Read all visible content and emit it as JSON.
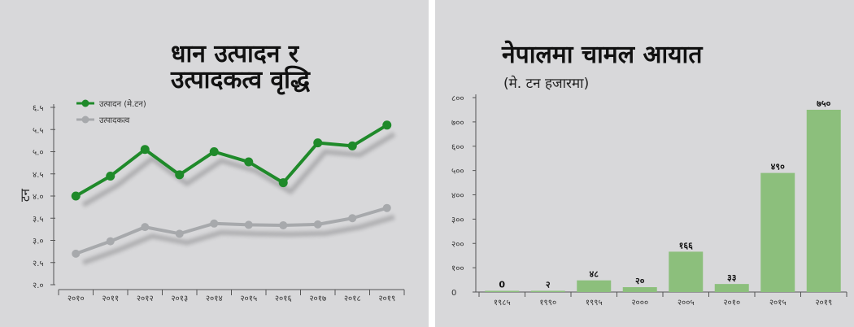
{
  "colors": {
    "panel_bg": "#d8d8da",
    "production_line": "#1f8a2a",
    "productivity_line": "#a7a9ac",
    "shadow": "#a9a9ab",
    "bar_fill": "#8cbf7c",
    "axis": "#555555"
  },
  "chart_data": [
    {
      "type": "line",
      "title_lines": [
        "धान उत्पादन र",
        "उत्पादकत्व वृद्धि"
      ],
      "ylabel": "टन",
      "xlabel": "",
      "categories": [
        "२०१०",
        "२०११",
        "२०१२",
        "२०१३",
        "२०१४",
        "२०१५",
        "२०१६",
        "२०१७",
        "२०१८",
        "२०१९"
      ],
      "yticks": [
        "२.०",
        "२.५",
        "३.०",
        "३.५",
        "४.०",
        "४.५",
        "५.०",
        "५.५",
        "६.५"
      ],
      "ylim": [
        2.0,
        6.0
      ],
      "legend_position": "top-left",
      "series": [
        {
          "name": "उत्पादन (मे.टन)",
          "color": "#1f8a2a",
          "marker": "circle",
          "values": [
            4.0,
            4.45,
            5.05,
            4.48,
            5.0,
            4.77,
            4.3,
            5.2,
            5.13,
            5.6
          ]
        },
        {
          "name": "उत्पादकत्व",
          "color": "#a7a9ac",
          "marker": "circle",
          "values": [
            2.7,
            2.98,
            3.3,
            3.15,
            3.38,
            3.35,
            3.34,
            3.36,
            3.5,
            3.73
          ]
        }
      ]
    },
    {
      "type": "bar",
      "title": "नेपालमा चामल आयात",
      "subtitle": "(मे. टन हजारमा)",
      "xlabel": "",
      "ylabel": "",
      "categories": [
        "१९८५",
        "१९९०",
        "१९९५",
        "२०००",
        "२००५",
        "२०१०",
        "२०१५",
        "२०१९"
      ],
      "values": [
        0,
        2,
        48,
        20,
        166,
        33,
        490,
        750
      ],
      "value_labels": [
        "0",
        "२",
        "४८",
        "२०",
        "१६६",
        "३३",
        "४९०",
        "७५०"
      ],
      "yticks": [
        "0",
        "१००",
        "२००",
        "३००",
        "४००",
        "५००",
        "६००",
        "७००",
        "८००"
      ],
      "ylim": [
        0,
        800
      ],
      "color": "#8cbf7c"
    }
  ]
}
